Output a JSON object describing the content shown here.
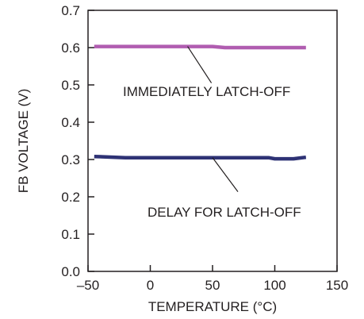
{
  "chart_data": {
    "type": "line",
    "title": "",
    "xlabel": "TEMPERATURE (°C)",
    "ylabel": "FB VOLTAGE (V)",
    "xlim": [
      -50,
      150
    ],
    "ylim": [
      0,
      0.7
    ],
    "xticks": [
      -50,
      0,
      50,
      100,
      150
    ],
    "xtick_labels": [
      "–50",
      "0",
      "50",
      "100",
      "150"
    ],
    "yticks": [
      0,
      0.1,
      0.2,
      0.3,
      0.4,
      0.5,
      0.6,
      0.7
    ],
    "ytick_labels": [
      "0.0",
      "0.1",
      "0.2",
      "0.3",
      "0.4",
      "0.5",
      "0.6",
      "0.7"
    ],
    "grid": false,
    "series": [
      {
        "name": "IMMEDIATELY LATCH-OFF",
        "color": "#b05db0",
        "x": [
          -45,
          -20,
          0,
          25,
          50,
          60,
          80,
          100,
          125
        ],
        "y": [
          0.603,
          0.603,
          0.603,
          0.603,
          0.603,
          0.6,
          0.6,
          0.6,
          0.6
        ]
      },
      {
        "name": "DELAY FOR LATCH-OFF",
        "color": "#2e3275",
        "x": [
          -45,
          -20,
          0,
          25,
          50,
          75,
          95,
          100,
          115,
          125
        ],
        "y": [
          0.308,
          0.305,
          0.305,
          0.305,
          0.305,
          0.305,
          0.305,
          0.302,
          0.302,
          0.306
        ]
      }
    ],
    "annotations": [
      {
        "text": "IMMEDIATELY LATCH-OFF",
        "series": 0,
        "x": 30,
        "y": 0.603
      },
      {
        "text": "DELAY FOR LATCH-OFF",
        "series": 1,
        "x": 50,
        "y": 0.305
      }
    ]
  }
}
